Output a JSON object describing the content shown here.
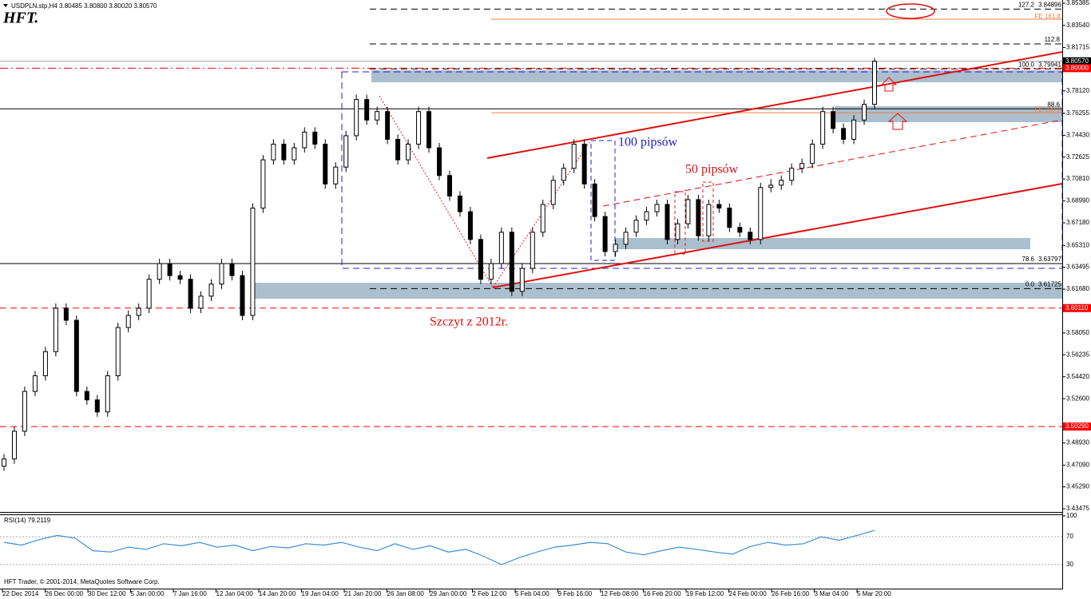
{
  "header": "USDPLN.stp,H4  3.80485 3.80800 3.80020 3.80570",
  "logo": "HFT.",
  "footer": "HFT Trader, © 2001-2014, MetaQuotes Software Corp.",
  "annotations": {
    "pips100": "100 pipsów",
    "pips50": "50 pipsów",
    "peak": "Szczyt z 2012r."
  },
  "chart_data": [
    {
      "type": "candlestick",
      "ylim": [
        3.43475,
        3.85385
      ],
      "yticks": [
        3.85385,
        {
          "value": 3.8354,
          "label": "3.83540"
        },
        3.81715,
        {
          "value": 3.7812,
          "label": "3.78120"
        },
        3.76255,
        {
          "value": 3.7443,
          "label": "3.74430"
        },
        3.72625,
        {
          "value": 3.7081,
          "label": "3.70810"
        },
        {
          "value": 3.6899,
          "label": "3.68990"
        },
        {
          "value": 3.6718,
          "label": "3.67180"
        },
        {
          "value": 3.6531,
          "label": "3.65310"
        },
        3.63495,
        {
          "value": 3.6168,
          "label": "3.61680"
        },
        {
          "value": 3.5805,
          "label": "3.58050"
        },
        3.56235,
        {
          "value": 3.5442,
          "label": "3.54420"
        },
        {
          "value": 3.526,
          "label": "3.52600"
        },
        {
          "value": 3.4893,
          "label": "3.48930"
        },
        {
          "value": 3.4709,
          "label": "3.47090"
        },
        {
          "value": 3.4529,
          "label": "3.45290"
        },
        3.43475
      ],
      "categories": [
        "22 Dec 2014",
        "26 Dec 00:00",
        "30 Dec 12:00",
        "5 Jan 00:00",
        "7 Jan 16:00",
        "12 Jan 04:00",
        "14 Jan 20:00",
        "19 Jan 04:00",
        "21 Jan 20:00",
        "26 Jan 08:00",
        "29 Jan 00:00",
        "2 Feb 12:00",
        "5 Feb 04:00",
        "9 Feb 16:00",
        "12 Feb 08:00",
        "16 Feb 20:00",
        "19 Feb 12:00",
        "24 Feb 00:00",
        "26 Feb 16:00",
        "3 Mar 04:00",
        "5 Mar 20:00"
      ],
      "ohlc": [
        [
          3.47,
          3.48,
          3.466,
          3.476
        ],
        [
          3.476,
          3.503,
          3.472,
          3.499
        ],
        [
          3.499,
          3.536,
          3.495,
          3.532
        ],
        [
          3.532,
          3.549,
          3.528,
          3.545
        ],
        [
          3.545,
          3.569,
          3.541,
          3.565
        ],
        [
          3.565,
          3.605,
          3.561,
          3.601
        ],
        [
          3.601,
          3.605,
          3.587,
          3.591
        ],
        [
          3.591,
          3.595,
          3.528,
          3.532
        ],
        [
          3.532,
          3.536,
          3.521,
          3.525
        ],
        [
          3.525,
          3.529,
          3.511,
          3.515
        ],
        [
          3.515,
          3.549,
          3.511,
          3.545
        ],
        [
          3.545,
          3.589,
          3.541,
          3.585
        ],
        [
          3.585,
          3.599,
          3.581,
          3.595
        ],
        [
          3.595,
          3.605,
          3.591,
          3.601
        ],
        [
          3.601,
          3.629,
          3.597,
          3.625
        ],
        [
          3.625,
          3.642,
          3.621,
          3.638
        ],
        [
          3.638,
          3.642,
          3.624,
          3.628
        ],
        [
          3.628,
          3.632,
          3.621,
          3.625
        ],
        [
          3.625,
          3.629,
          3.597,
          3.601
        ],
        [
          3.601,
          3.615,
          3.597,
          3.611
        ],
        [
          3.611,
          3.625,
          3.607,
          3.621
        ],
        [
          3.621,
          3.642,
          3.617,
          3.638
        ],
        [
          3.638,
          3.642,
          3.624,
          3.628
        ],
        [
          3.628,
          3.632,
          3.591,
          3.595
        ],
        [
          3.595,
          3.688,
          3.591,
          3.684
        ],
        [
          3.684,
          3.728,
          3.68,
          3.724
        ],
        [
          3.724,
          3.741,
          3.72,
          3.737
        ],
        [
          3.737,
          3.741,
          3.72,
          3.724
        ],
        [
          3.724,
          3.738,
          3.72,
          3.734
        ],
        [
          3.734,
          3.751,
          3.73,
          3.747
        ],
        [
          3.747,
          3.751,
          3.733,
          3.737
        ],
        [
          3.737,
          3.741,
          3.7,
          3.704
        ],
        [
          3.704,
          3.722,
          3.7,
          3.718
        ],
        [
          3.718,
          3.748,
          3.714,
          3.744
        ],
        [
          3.744,
          3.778,
          3.74,
          3.774
        ],
        [
          3.774,
          3.778,
          3.753,
          3.757
        ],
        [
          3.757,
          3.768,
          3.753,
          3.764
        ],
        [
          3.764,
          3.768,
          3.737,
          3.741
        ],
        [
          3.741,
          3.745,
          3.72,
          3.724
        ],
        [
          3.724,
          3.741,
          3.72,
          3.737
        ],
        [
          3.737,
          3.768,
          3.733,
          3.764
        ],
        [
          3.764,
          3.768,
          3.73,
          3.734
        ],
        [
          3.734,
          3.738,
          3.707,
          3.711
        ],
        [
          3.711,
          3.715,
          3.69,
          3.694
        ],
        [
          3.694,
          3.698,
          3.677,
          3.681
        ],
        [
          3.681,
          3.685,
          3.654,
          3.658
        ],
        [
          3.658,
          3.662,
          3.621,
          3.625
        ],
        [
          3.625,
          3.642,
          3.621,
          3.638
        ],
        [
          3.638,
          3.668,
          3.634,
          3.664
        ],
        [
          3.664,
          3.668,
          3.611,
          3.615
        ],
        [
          3.615,
          3.638,
          3.611,
          3.634
        ],
        [
          3.634,
          3.668,
          3.63,
          3.664
        ],
        [
          3.664,
          3.691,
          3.66,
          3.687
        ],
        [
          3.687,
          3.711,
          3.683,
          3.707
        ],
        [
          3.707,
          3.721,
          3.703,
          3.717
        ],
        [
          3.717,
          3.741,
          3.713,
          3.737
        ],
        [
          3.737,
          3.741,
          3.7,
          3.704
        ],
        [
          3.704,
          3.708,
          3.673,
          3.677
        ],
        [
          3.677,
          3.681,
          3.644,
          3.648
        ],
        [
          3.648,
          3.658,
          3.644,
          3.654
        ],
        [
          3.654,
          3.668,
          3.65,
          3.664
        ],
        [
          3.664,
          3.678,
          3.66,
          3.674
        ],
        [
          3.674,
          3.685,
          3.67,
          3.681
        ],
        [
          3.681,
          3.691,
          3.677,
          3.687
        ],
        [
          3.687,
          3.691,
          3.654,
          3.658
        ],
        [
          3.658,
          3.675,
          3.654,
          3.671
        ],
        [
          3.671,
          3.695,
          3.667,
          3.691
        ],
        [
          3.691,
          3.695,
          3.657,
          3.661
        ],
        [
          3.661,
          3.691,
          3.657,
          3.687
        ],
        [
          3.687,
          3.691,
          3.68,
          3.684
        ],
        [
          3.684,
          3.688,
          3.664,
          3.668
        ],
        [
          3.668,
          3.672,
          3.66,
          3.664
        ],
        [
          3.664,
          3.668,
          3.654,
          3.658
        ],
        [
          3.658,
          3.705,
          3.654,
          3.701
        ],
        [
          3.701,
          3.708,
          3.697,
          3.703
        ],
        [
          3.703,
          3.711,
          3.699,
          3.707
        ],
        [
          3.707,
          3.721,
          3.703,
          3.717
        ],
        [
          3.717,
          3.725,
          3.713,
          3.721
        ],
        [
          3.721,
          3.741,
          3.717,
          3.737
        ],
        [
          3.737,
          3.768,
          3.733,
          3.764
        ],
        [
          3.764,
          3.768,
          3.746,
          3.75
        ],
        [
          3.75,
          3.754,
          3.737,
          3.741
        ],
        [
          3.741,
          3.761,
          3.737,
          3.757
        ],
        [
          3.757,
          3.774,
          3.753,
          3.77
        ],
        [
          3.77,
          3.8085,
          3.766,
          3.8057
        ]
      ],
      "price_markers": [
        {
          "value": 3.8057,
          "label": "3.80570",
          "color": "#000000",
          "style": "solid"
        },
        {
          "value": 3.8,
          "label": "3.80000",
          "color": "#ff0000",
          "style": "dashdot"
        },
        {
          "value": 3.6011,
          "label": "3.60110",
          "color": "#ff0000",
          "style": "dash"
        },
        {
          "value": 3.5029,
          "label": "3.50290",
          "color": "#ff0000",
          "style": "dash"
        }
      ],
      "fibo_levels": [
        {
          "label": "127.2",
          "value": 3.84896,
          "price_label": "3.84896",
          "style": "dash"
        },
        {
          "label": "112.8",
          "value": 3.8201,
          "style": "dash"
        },
        {
          "label": "100.0",
          "value": 3.79941,
          "price_label": "3.79941",
          "style": "dash"
        },
        {
          "label": "88.6",
          "value": 3.7663,
          "style": "solid"
        },
        {
          "label": "78.6",
          "value": 3.63797,
          "price_label": "3.63797",
          "style": "solid"
        },
        {
          "label": "0.0",
          "value": 3.61725,
          "price_label": "3.61725",
          "style": "dash"
        }
      ],
      "fe_levels": [
        {
          "label": "FE 161.8",
          "value": 3.8406,
          "color": "#f08040"
        },
        {
          "label": "FE 100.0",
          "value": 3.7631,
          "color": "#f08040"
        }
      ]
    },
    {
      "type": "line",
      "title": "RSI(14) 79.2119",
      "color": "#3d8fd6",
      "ylim": [
        0,
        100
      ],
      "yticks": [
        30,
        70,
        100
      ],
      "grid": true,
      "values": [
        62,
        58,
        66,
        72,
        68,
        50,
        48,
        55,
        52,
        60,
        57,
        62,
        55,
        58,
        50,
        56,
        54,
        60,
        58,
        62,
        55,
        50,
        60,
        52,
        57,
        48,
        52,
        42,
        30,
        40,
        48,
        55,
        58,
        62,
        60,
        48,
        44,
        50,
        55,
        52,
        48,
        45,
        56,
        62,
        58,
        60,
        70,
        65,
        72,
        79.2119
      ]
    }
  ]
}
